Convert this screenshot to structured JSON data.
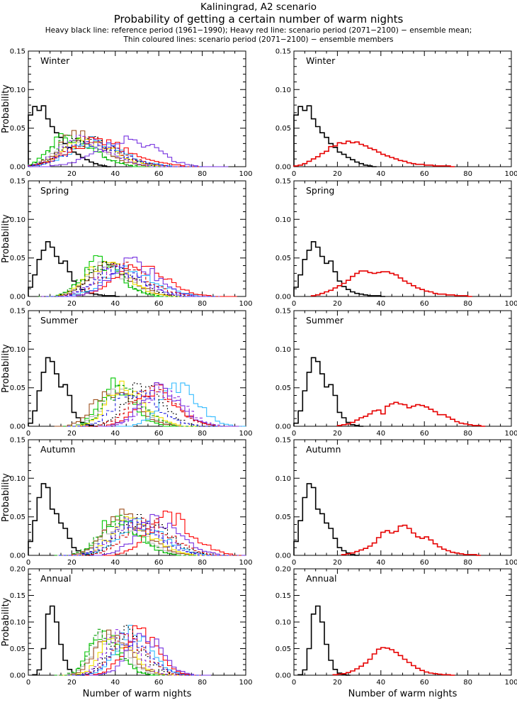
{
  "title": {
    "line1": "Kaliningrad, A2 scenario",
    "line2": "Probability of getting a certain number of warm nights",
    "legend1": "Heavy black line: reference period (1961−1990); Heavy red line: scenario period (2071−2100) − ensemble mean;",
    "legend2": "Thin coloured lines: scenario period (2071−2100) − ensemble members"
  },
  "axes": {
    "xlabel": "Number of warm nights",
    "ylabel": "Probability",
    "xlim": [
      0,
      100
    ],
    "xticks": [
      0,
      20,
      40,
      60,
      80,
      100
    ],
    "x_minor_step": 5,
    "y_minor_step": 0.01,
    "grid": false
  },
  "colors": {
    "frame": "#000000",
    "reference": "#000000",
    "mean": "#e60000",
    "background": "#ffffff"
  },
  "chart_data": {
    "type": "bar",
    "subtype": "step-histogram",
    "bin_width": 2,
    "columns": [
      "members",
      "mean"
    ],
    "members_palette": [
      {
        "name": "member-green",
        "color": "#00c800",
        "dash": null
      },
      {
        "name": "member-gray",
        "color": "#b8b8b8",
        "dash": null
      },
      {
        "name": "member-brown",
        "color": "#9e5221",
        "dash": null
      },
      {
        "name": "member-yellow",
        "color": "#f0e000",
        "dash": null
      },
      {
        "name": "member-cyan",
        "color": "#33bbff",
        "dash": null
      },
      {
        "name": "member-red",
        "color": "#ff0000",
        "dash": null
      },
      {
        "name": "member-purple",
        "color": "#7733e0",
        "dash": null
      },
      {
        "name": "member-green-dashed",
        "color": "#00a000",
        "dash": "4 3"
      },
      {
        "name": "member-black-dashed",
        "color": "#000000",
        "dash": "2 3"
      },
      {
        "name": "member-red-dashed",
        "color": "#d00000",
        "dash": "4 3"
      },
      {
        "name": "member-purple-dashed",
        "color": "#8a2be2",
        "dash": "4 3"
      },
      {
        "name": "member-blue-dashed",
        "color": "#2222e0",
        "dash": "4 3"
      }
    ],
    "rows": [
      {
        "label": "Winter",
        "ylim": [
          0,
          0.15
        ],
        "yticks": [
          "0.00",
          "0.05",
          "0.10",
          "0.15"
        ],
        "reference": {
          "x0": 0,
          "dx": 2,
          "values": [
            0.067,
            0.078,
            0.073,
            0.079,
            0.062,
            0.052,
            0.044,
            0.038,
            0.03,
            0.025,
            0.019,
            0.016,
            0.012,
            0.009,
            0.006,
            0.004,
            0.002,
            0.001,
            0
          ]
        },
        "mean": {
          "x0": 0,
          "dx": 2,
          "values": [
            0.001,
            0.002,
            0.004,
            0.007,
            0.01,
            0.013,
            0.017,
            0.02,
            0.026,
            0.027,
            0.031,
            0.03,
            0.033,
            0.031,
            0.032,
            0.029,
            0.027,
            0.024,
            0.022,
            0.019,
            0.016,
            0.014,
            0.012,
            0.01,
            0.008,
            0.007,
            0.005,
            0.004,
            0.003,
            0.003,
            0.002,
            0.002,
            0.001,
            0.001,
            0.001,
            0.001,
            0
          ]
        },
        "member_params": [
          [
            16,
            0.04,
            7,
            12
          ],
          [
            20,
            0.034,
            8,
            14
          ],
          [
            21,
            0.042,
            8,
            12
          ],
          [
            24,
            0.033,
            9,
            14
          ],
          [
            28,
            0.032,
            10,
            14
          ],
          [
            30,
            0.033,
            12,
            16
          ],
          [
            46,
            0.034,
            14,
            12
          ],
          [
            18,
            0.035,
            8,
            12
          ],
          [
            25,
            0.036,
            10,
            13
          ],
          [
            26,
            0.033,
            10,
            14
          ],
          [
            22,
            0.035,
            9,
            13
          ],
          [
            27,
            0.031,
            10,
            14
          ]
        ]
      },
      {
        "label": "Spring",
        "ylim": [
          0,
          0.15
        ],
        "yticks": [
          "0.00",
          "0.05",
          "0.10",
          "0.15"
        ],
        "reference": {
          "x0": 0,
          "dx": 2,
          "values": [
            0.012,
            0.028,
            0.048,
            0.06,
            0.071,
            0.064,
            0.052,
            0.043,
            0.046,
            0.032,
            0.02,
            0.013,
            0.009,
            0.006,
            0.004,
            0.003,
            0.002,
            0.001,
            0.001,
            0.001,
            0
          ]
        },
        "mean": {
          "x0": 8,
          "dx": 2,
          "values": [
            0.001,
            0.002,
            0.004,
            0.006,
            0.008,
            0.011,
            0.014,
            0.017,
            0.021,
            0.026,
            0.03,
            0.033,
            0.033,
            0.031,
            0.03,
            0.031,
            0.032,
            0.032,
            0.03,
            0.028,
            0.024,
            0.02,
            0.017,
            0.014,
            0.011,
            0.009,
            0.007,
            0.006,
            0.004,
            0.003,
            0.003,
            0.002,
            0.002,
            0.001,
            0.001,
            0.001,
            0
          ]
        },
        "member_params": [
          [
            31,
            0.044,
            7,
            10
          ],
          [
            33,
            0.038,
            8,
            11
          ],
          [
            35,
            0.04,
            8,
            11
          ],
          [
            34,
            0.042,
            8,
            11
          ],
          [
            44,
            0.034,
            10,
            13
          ],
          [
            50,
            0.038,
            11,
            12
          ],
          [
            46,
            0.045,
            9,
            11
          ],
          [
            32,
            0.04,
            8,
            10
          ],
          [
            36,
            0.038,
            9,
            12
          ],
          [
            42,
            0.037,
            10,
            12
          ],
          [
            38,
            0.036,
            9,
            12
          ],
          [
            40,
            0.036,
            9,
            12
          ]
        ]
      },
      {
        "label": "Summer",
        "ylim": [
          0,
          0.15
        ],
        "yticks": [
          "0.00",
          "0.05",
          "0.10",
          "0.15"
        ],
        "reference": {
          "x0": 0,
          "dx": 2,
          "values": [
            0.004,
            0.02,
            0.046,
            0.07,
            0.089,
            0.084,
            0.068,
            0.051,
            0.054,
            0.04,
            0.018,
            0.011,
            0.005,
            0.002,
            0.001,
            0
          ]
        },
        "mean": {
          "x0": 20,
          "dx": 2,
          "values": [
            0.001,
            0.002,
            0.003,
            0.005,
            0.008,
            0.011,
            0.013,
            0.016,
            0.02,
            0.021,
            0.016,
            0.026,
            0.029,
            0.031,
            0.029,
            0.028,
            0.024,
            0.026,
            0.028,
            0.027,
            0.025,
            0.022,
            0.019,
            0.015,
            0.015,
            0.012,
            0.009,
            0.006,
            0.004,
            0.003,
            0.002,
            0.001,
            0.001,
            0
          ]
        },
        "member_params": [
          [
            37,
            0.052,
            6,
            9
          ],
          [
            40,
            0.046,
            7,
            10
          ],
          [
            36,
            0.048,
            7,
            11
          ],
          [
            42,
            0.05,
            7,
            10
          ],
          [
            68,
            0.052,
            8,
            9
          ],
          [
            57,
            0.05,
            8,
            10
          ],
          [
            58,
            0.048,
            8,
            10
          ],
          [
            41,
            0.046,
            7,
            10
          ],
          [
            50,
            0.052,
            7,
            10
          ],
          [
            55,
            0.048,
            9,
            11
          ],
          [
            60,
            0.046,
            8,
            10
          ],
          [
            47,
            0.044,
            8,
            11
          ]
        ]
      },
      {
        "label": "Autumn",
        "ylim": [
          0,
          0.15
        ],
        "yticks": [
          "0.00",
          "0.05",
          "0.10",
          "0.15"
        ],
        "reference": {
          "x0": 0,
          "dx": 2,
          "values": [
            0.018,
            0.045,
            0.075,
            0.093,
            0.088,
            0.06,
            0.054,
            0.042,
            0.035,
            0.022,
            0.01,
            0.006,
            0.003,
            0.001,
            0
          ]
        },
        "mean": {
          "x0": 22,
          "dx": 2,
          "values": [
            0.001,
            0.002,
            0.003,
            0.005,
            0.007,
            0.009,
            0.012,
            0.016,
            0.023,
            0.03,
            0.032,
            0.029,
            0.031,
            0.038,
            0.039,
            0.035,
            0.029,
            0.024,
            0.022,
            0.024,
            0.02,
            0.015,
            0.011,
            0.008,
            0.006,
            0.004,
            0.003,
            0.002,
            0.001,
            0.001,
            0.001,
            0
          ]
        },
        "member_params": [
          [
            39,
            0.048,
            7,
            10
          ],
          [
            41,
            0.042,
            8,
            11
          ],
          [
            42,
            0.05,
            8,
            11
          ],
          [
            45,
            0.044,
            8,
            11
          ],
          [
            49,
            0.042,
            9,
            12
          ],
          [
            63,
            0.05,
            9,
            11
          ],
          [
            58,
            0.046,
            9,
            11
          ],
          [
            40,
            0.044,
            8,
            10
          ],
          [
            50,
            0.048,
            9,
            12
          ],
          [
            52,
            0.044,
            9,
            12
          ],
          [
            48,
            0.044,
            9,
            12
          ],
          [
            46,
            0.042,
            9,
            12
          ]
        ]
      },
      {
        "label": "Annual",
        "ylim": [
          0,
          0.2
        ],
        "yticks": [
          "0.00",
          "0.05",
          "0.10",
          "0.15",
          "0.20"
        ],
        "reference": {
          "x0": 2,
          "dx": 2,
          "values": [
            0.001,
            0.01,
            0.05,
            0.115,
            0.13,
            0.1,
            0.058,
            0.028,
            0.011,
            0.004,
            0.001,
            0
          ]
        },
        "mean": {
          "x0": 18,
          "dx": 2,
          "values": [
            0.001,
            0.002,
            0.003,
            0.005,
            0.008,
            0.012,
            0.017,
            0.023,
            0.03,
            0.04,
            0.049,
            0.052,
            0.051,
            0.048,
            0.043,
            0.037,
            0.03,
            0.024,
            0.018,
            0.013,
            0.009,
            0.006,
            0.004,
            0.003,
            0.002,
            0.001,
            0.001,
            0
          ]
        },
        "member_params": [
          [
            32,
            0.082,
            5,
            8
          ],
          [
            34,
            0.072,
            6,
            9
          ],
          [
            36,
            0.075,
            6,
            9
          ],
          [
            38,
            0.068,
            6,
            9
          ],
          [
            46,
            0.078,
            7,
            9
          ],
          [
            50,
            0.08,
            7,
            8
          ],
          [
            52,
            0.075,
            7,
            8
          ],
          [
            33,
            0.072,
            6,
            8
          ],
          [
            42,
            0.08,
            6,
            9
          ],
          [
            44,
            0.07,
            7,
            9
          ],
          [
            40,
            0.082,
            6,
            8
          ],
          [
            45,
            0.068,
            7,
            9
          ]
        ]
      }
    ]
  }
}
